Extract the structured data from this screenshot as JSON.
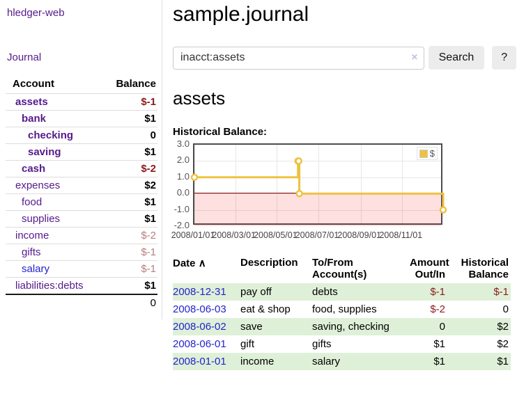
{
  "colors": {
    "link-purple": "#551a8b",
    "link-blue": "#2323cc",
    "neg-strong": "#8b1a1a",
    "neg-soft": "#b97e7e",
    "row-green": "#dff0d8",
    "chart-line": "#edc240",
    "chart-zero": "#8b0000",
    "chart-border": "#4d4d4d",
    "chart-grid": "#e6e6e6",
    "axis-text": "#545454",
    "button-bg": "#ececec"
  },
  "sidebar": {
    "app_title": "hledger-web",
    "journal_link": "Journal",
    "accounts_header": {
      "account": "Account",
      "balance": "Balance"
    },
    "accounts": [
      {
        "name": "assets",
        "depth": 1,
        "bold": true,
        "balance": "$-1"
      },
      {
        "name": "bank",
        "depth": 2,
        "bold": true,
        "balance": "$1"
      },
      {
        "name": "checking",
        "depth": 3,
        "bold": true,
        "balance": "0"
      },
      {
        "name": "saving",
        "depth": 3,
        "bold": true,
        "balance": "$1"
      },
      {
        "name": "cash",
        "depth": 2,
        "bold": true,
        "balance": "$-2"
      },
      {
        "name": "expenses",
        "depth": 1,
        "bold": false,
        "balance": "$2"
      },
      {
        "name": "food",
        "depth": 2,
        "bold": false,
        "balance": "$1"
      },
      {
        "name": "supplies",
        "depth": 2,
        "bold": false,
        "balance": "$1"
      },
      {
        "name": "income",
        "depth": 1,
        "bold": false,
        "balance": "$-2"
      },
      {
        "name": "gifts",
        "depth": 2,
        "bold": false,
        "balance": "$-1"
      },
      {
        "name": "salary",
        "depth": 2,
        "bold": false,
        "balance": "$-1",
        "unvisited": true
      },
      {
        "name": "liabilities:debts",
        "depth": 1,
        "bold": false,
        "balance": "$1"
      }
    ],
    "total": "0"
  },
  "main": {
    "title": "sample.journal",
    "search": {
      "value": "inacct:assets",
      "clear_icon": "×",
      "button_label": "Search",
      "help_label": "?"
    },
    "account_heading": "assets",
    "chart_title": "Historical Balance:"
  },
  "chart_data": {
    "type": "line",
    "step": true,
    "title": "Historical Balance",
    "series": [
      {
        "name": "$",
        "color": "#edc240",
        "points": [
          [
            "2008-01-01",
            1
          ],
          [
            "2008-06-01",
            2
          ],
          [
            "2008-06-02",
            2
          ],
          [
            "2008-06-03",
            0
          ],
          [
            "2008-12-31",
            -1
          ]
        ]
      }
    ],
    "xlim": [
      "2008-01-01",
      "2009-01-01"
    ],
    "ylim": [
      -2,
      3
    ],
    "xtick_labels": [
      "2008/01/01",
      "2008/03/01",
      "2008/05/01",
      "2008/07/01",
      "2008/09/01",
      "2008/11/01"
    ],
    "ytick_labels": [
      "3.0",
      "2.0",
      "1.0",
      "0.0",
      "-1.0",
      "-2.0"
    ],
    "legend": {
      "label": "$",
      "position": "top-right"
    },
    "grid": true,
    "negative_region_shaded": true
  },
  "register": {
    "headers": {
      "date": "Date",
      "sort_icon": "∧",
      "description": "Description",
      "accounts": "To/From\nAccount(s)",
      "amount": "Amount\nOut/In",
      "balance": "Historical\nBalance"
    },
    "rows": [
      {
        "date": "2008-12-31",
        "description": "pay off",
        "accounts": "debts",
        "amount": "$-1",
        "balance": "$-1"
      },
      {
        "date": "2008-06-03",
        "description": "eat & shop",
        "accounts": "food, supplies",
        "amount": "$-2",
        "balance": "0"
      },
      {
        "date": "2008-06-02",
        "description": "save",
        "accounts": "saving, checking",
        "amount": "0",
        "balance": "$2"
      },
      {
        "date": "2008-06-01",
        "description": "gift",
        "accounts": "gifts",
        "amount": "$1",
        "balance": "$2"
      },
      {
        "date": "2008-01-01",
        "description": "income",
        "accounts": "salary",
        "amount": "$1",
        "balance": "$1"
      }
    ]
  }
}
